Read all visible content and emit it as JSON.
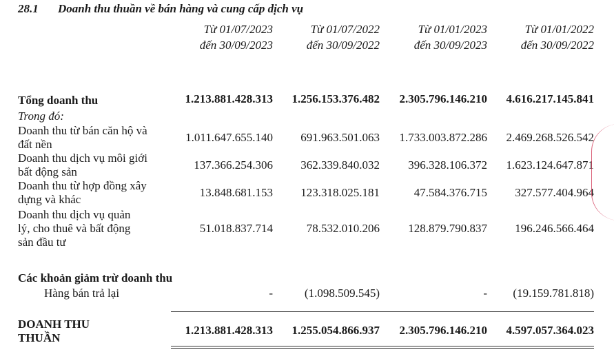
{
  "section": {
    "number": "28.1",
    "title": "Doanh thu thuần về bán hàng và cung cấp dịch vụ"
  },
  "columns": [
    {
      "line1": "Từ 01/07/2023",
      "line2": "đến 30/09/2023"
    },
    {
      "line1": "Từ 01/07/2022",
      "line2": "đến 30/09/2022"
    },
    {
      "line1": "Từ 01/01/2023",
      "line2": "đến 30/09/2023"
    },
    {
      "line1": "Từ 01/01/2022",
      "line2": "đến 30/09/2022"
    }
  ],
  "total_revenue": {
    "label": "Tổng doanh thu",
    "values": [
      "1.213.881.428.313",
      "1.256.153.376.482",
      "2.305.796.146.210",
      "4.616.217.145.841"
    ]
  },
  "breakdown_label": "Trong đó:",
  "items": [
    {
      "label": "Doanh thu từ bán căn hộ và đất nền",
      "values": [
        "1.011.647.655.140",
        "691.963.501.063",
        "1.733.003.872.286",
        "2.469.268.526.542"
      ]
    },
    {
      "label": "Doanh thu dịch vụ môi giới bất động sản",
      "values": [
        "137.366.254.306",
        "362.339.840.032",
        "396.328.106.372",
        "1.623.124.647.871"
      ]
    },
    {
      "label": "Doanh thu từ hợp đồng xây dựng và khác",
      "values": [
        "13.848.681.153",
        "123.318.025.181",
        "47.584.376.715",
        "327.577.404.964"
      ]
    },
    {
      "label": "Doanh thu dịch vụ quản lý, cho thuê và bất động sản đầu tư",
      "values": [
        "51.018.837.714",
        "78.532.010.206",
        "128.879.790.837",
        "196.246.566.464"
      ]
    }
  ],
  "deductions": {
    "label": "Các khoản giảm trừ doanh thu",
    "sub_label": "Hàng bán trả lại",
    "values": [
      "-",
      "(1.098.509.545)",
      "-",
      "(19.159.781.818)"
    ]
  },
  "net_revenue": {
    "label": "DOANH THU THUẦN",
    "values": [
      "1.213.881.428.313",
      "1.255.054.866.937",
      "2.305.796.146.210",
      "4.597.057.364.023"
    ]
  }
}
